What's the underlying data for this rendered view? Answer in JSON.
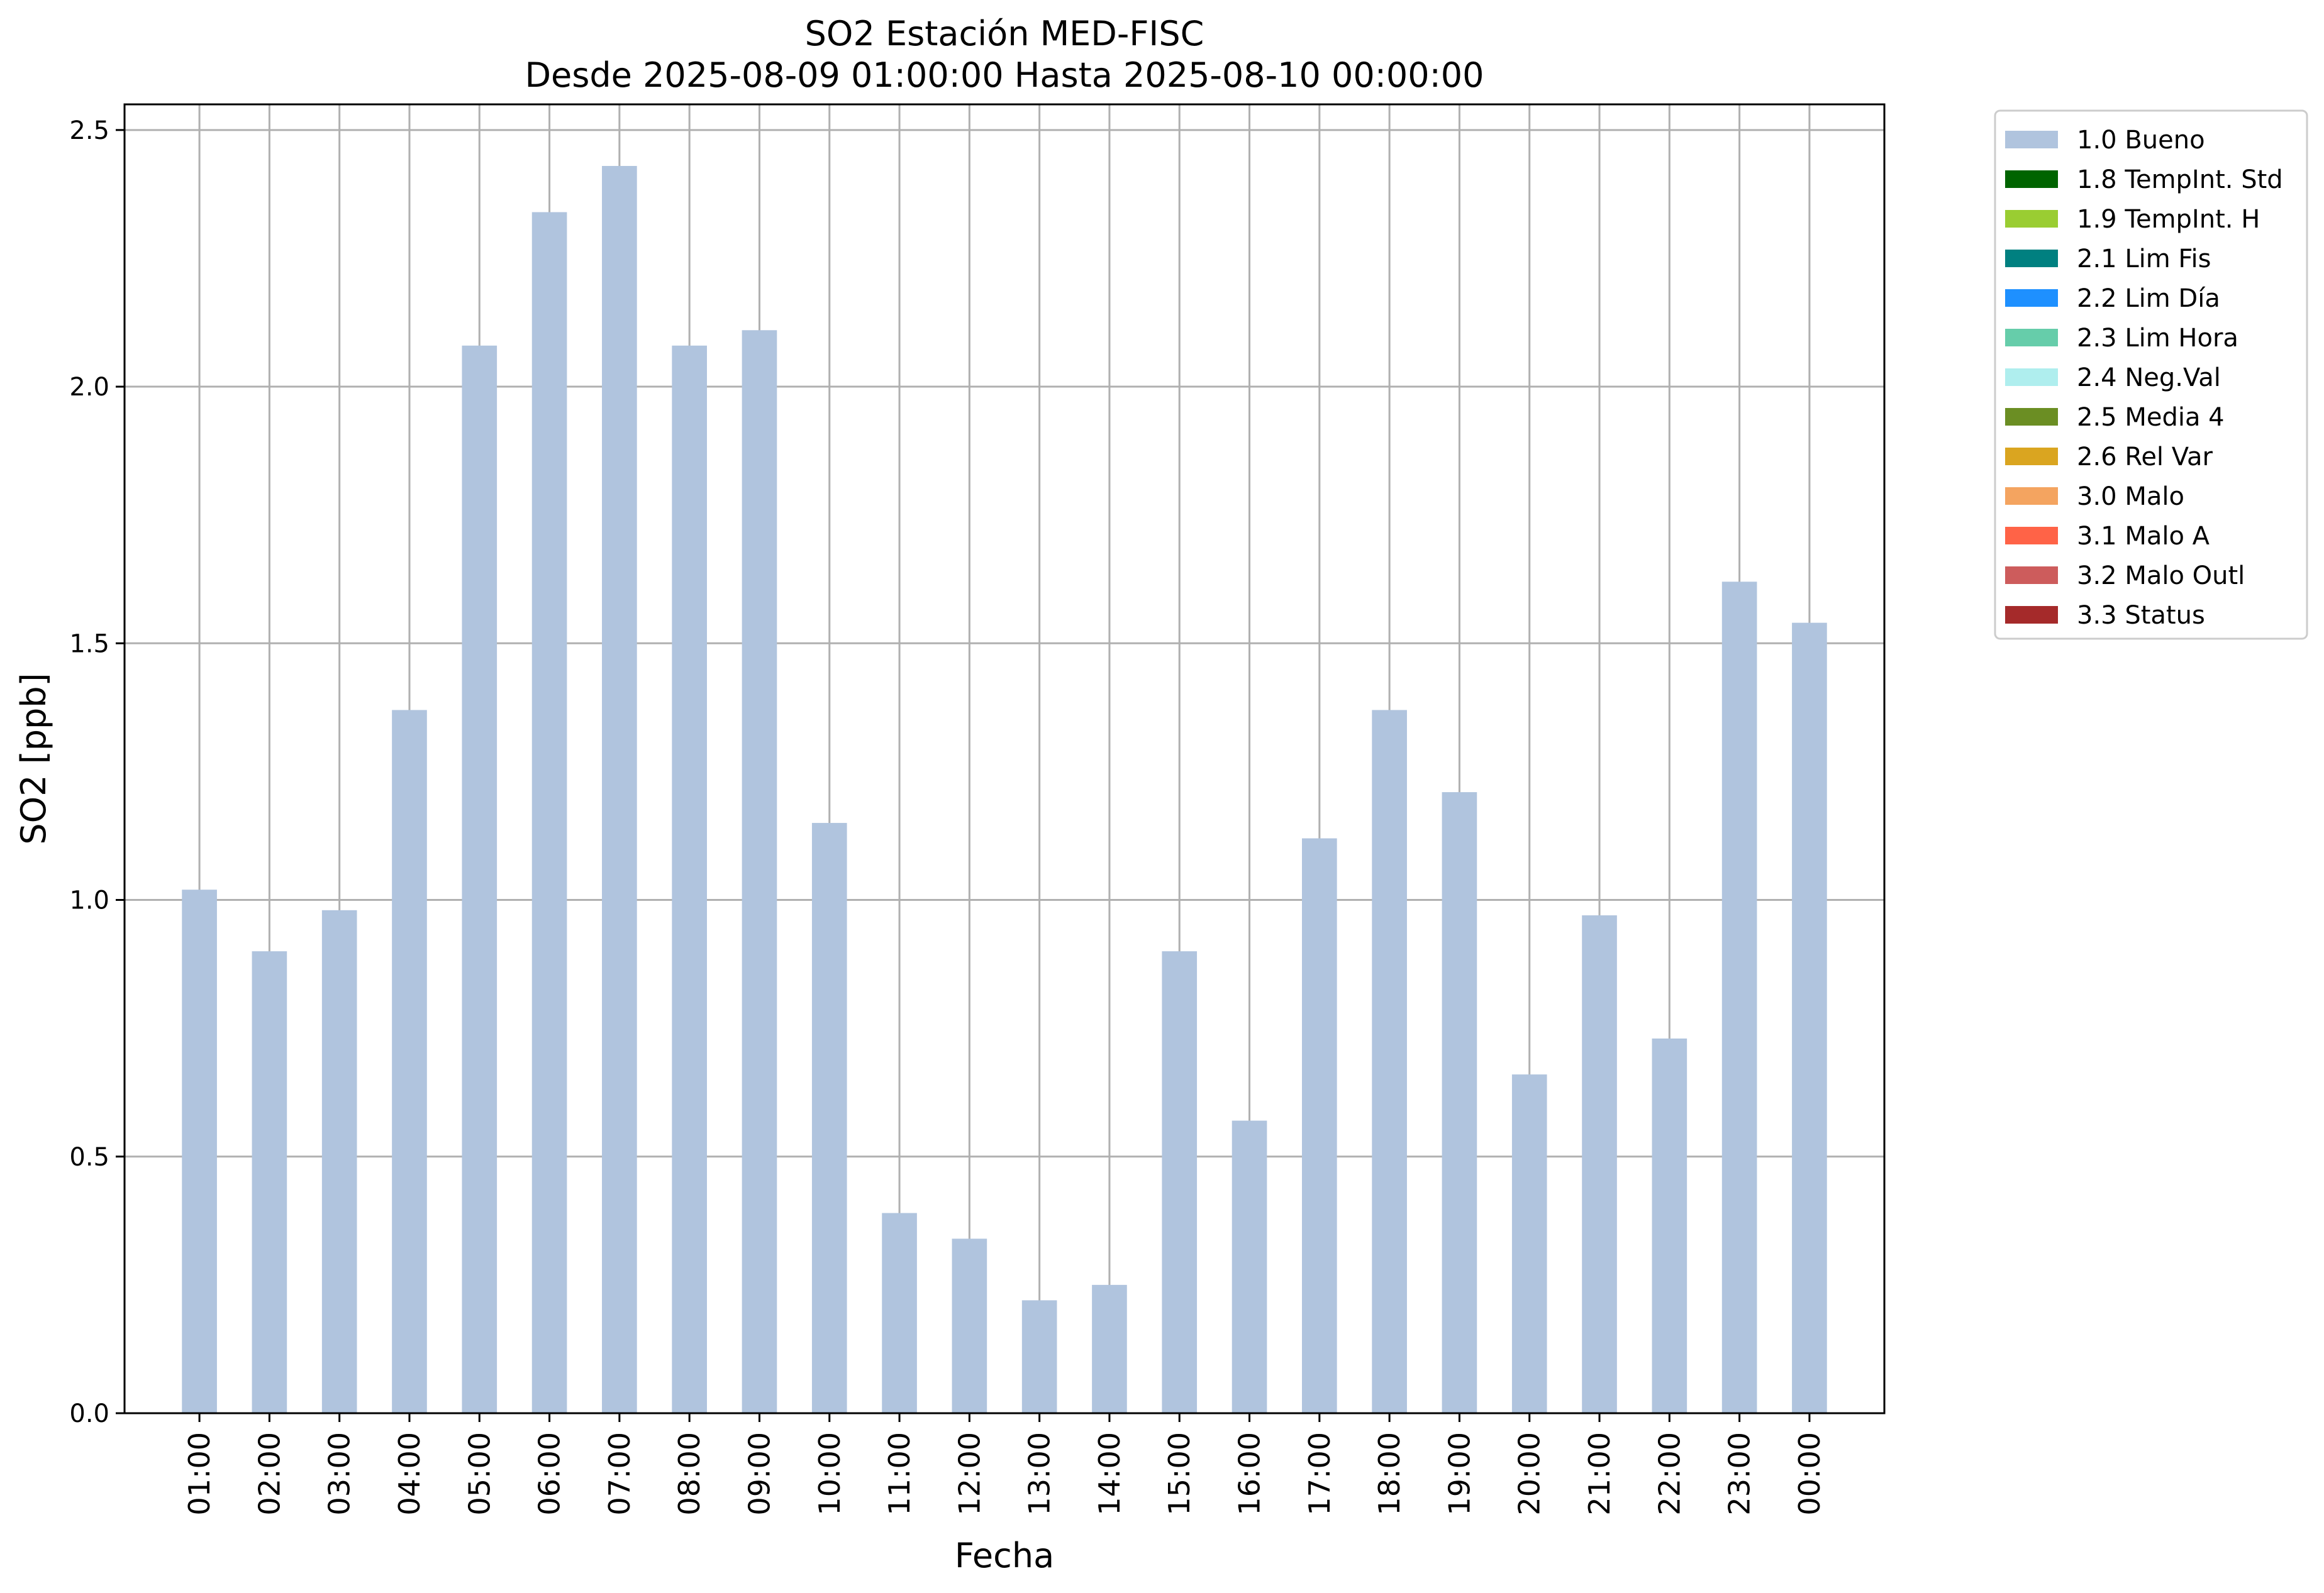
{
  "chart_data": {
    "type": "bar",
    "title": "SO2 Estación MED-FISC",
    "subtitle": "Desde 2025-08-09 01:00:00 Hasta 2025-08-10 00:00:00",
    "xlabel": "Fecha",
    "ylabel": "SO2 [ppb]",
    "ylim": [
      0,
      2.55
    ],
    "yticks": [
      "0.0",
      "0.5",
      "1.0",
      "1.5",
      "2.0",
      "2.5"
    ],
    "grid": true,
    "legend_position": "outside-top-right",
    "categories": [
      "01:00",
      "02:00",
      "03:00",
      "04:00",
      "05:00",
      "06:00",
      "07:00",
      "08:00",
      "09:00",
      "10:00",
      "11:00",
      "12:00",
      "13:00",
      "14:00",
      "15:00",
      "16:00",
      "17:00",
      "18:00",
      "19:00",
      "20:00",
      "21:00",
      "22:00",
      "23:00",
      "00:00"
    ],
    "series": [
      {
        "name": "1.0 Bueno",
        "color": "#b0c4de",
        "values": [
          1.02,
          0.9,
          0.98,
          1.37,
          2.08,
          2.34,
          2.43,
          2.08,
          2.11,
          1.15,
          0.39,
          0.34,
          0.22,
          0.25,
          0.9,
          0.57,
          1.12,
          1.37,
          1.21,
          0.66,
          0.97,
          0.73,
          1.62,
          1.54
        ]
      }
    ],
    "legend": [
      {
        "label": "1.0 Bueno",
        "color": "#b0c4de"
      },
      {
        "label": "1.8 TempInt. Std",
        "color": "#006400"
      },
      {
        "label": "1.9 TempInt. H",
        "color": "#9acd32"
      },
      {
        "label": "2.1 Lim Fis",
        "color": "#008080"
      },
      {
        "label": "2.2 Lim Día",
        "color": "#1e90ff"
      },
      {
        "label": "2.3 Lim Hora",
        "color": "#66cdaa"
      },
      {
        "label": "2.4 Neg.Val",
        "color": "#afeeee"
      },
      {
        "label": "2.5 Media 4",
        "color": "#6b8e23"
      },
      {
        "label": "2.6 Rel Var",
        "color": "#daa520"
      },
      {
        "label": "3.0 Malo",
        "color": "#f4a460"
      },
      {
        "label": "3.1 Malo A",
        "color": "#ff6347"
      },
      {
        "label": "3.2 Malo Outl",
        "color": "#cd5c5c"
      },
      {
        "label": "3.3 Status",
        "color": "#a52a2a"
      }
    ]
  }
}
